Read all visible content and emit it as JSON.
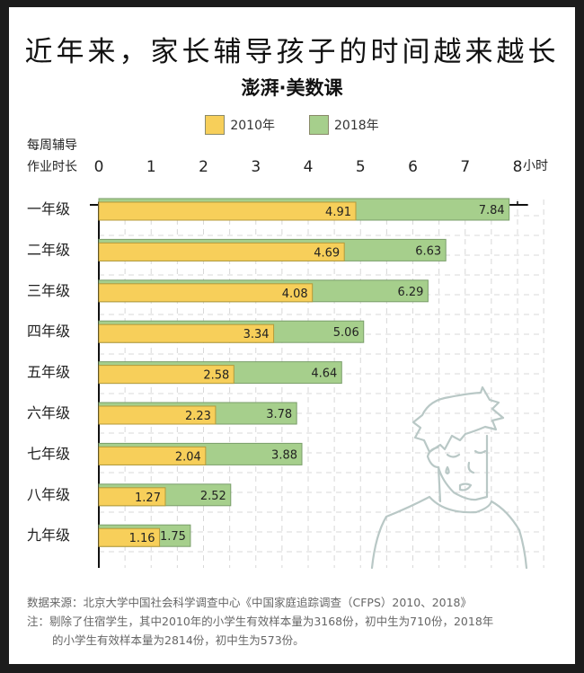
{
  "title": "近年来，家长辅导孩子的时间越来越长",
  "brand": "澎湃·美数课",
  "colors": {
    "y2010": "#f7cf5a",
    "y2018": "#a6cf8c",
    "grid": "#d8d8d8",
    "figure": "#b9c8c6"
  },
  "chart_data": {
    "type": "bar",
    "orientation": "horizontal",
    "ylabel": "每周辅导作业时长",
    "xunit": "小时",
    "xlim": [
      0,
      8
    ],
    "xticks": [
      "0",
      "1",
      "2",
      "3",
      "4",
      "5",
      "6",
      "7",
      "8"
    ],
    "grid": true,
    "legend_position": "top",
    "categories": [
      "一年级",
      "二年级",
      "三年级",
      "四年级",
      "五年级",
      "六年级",
      "七年级",
      "八年级",
      "九年级"
    ],
    "series": [
      {
        "name": "2010年",
        "values": [
          4.91,
          4.69,
          4.08,
          3.34,
          2.58,
          2.23,
          2.04,
          1.27,
          1.16
        ]
      },
      {
        "name": "2018年",
        "values": [
          7.84,
          6.63,
          6.29,
          5.06,
          4.64,
          3.78,
          3.88,
          2.52,
          1.75
        ]
      }
    ]
  },
  "footer": {
    "source": "数据来源：北京大学中国社会科学调查中心《中国家庭追踪调查（CFPS）2010、2018》",
    "note_line1": "注：剔除了住宿学生，其中2010年的小学生有效样本量为3168份，初中生为710份，2018年",
    "note_line2": "的小学生有效样本量为2814份，初中生为573份。"
  }
}
